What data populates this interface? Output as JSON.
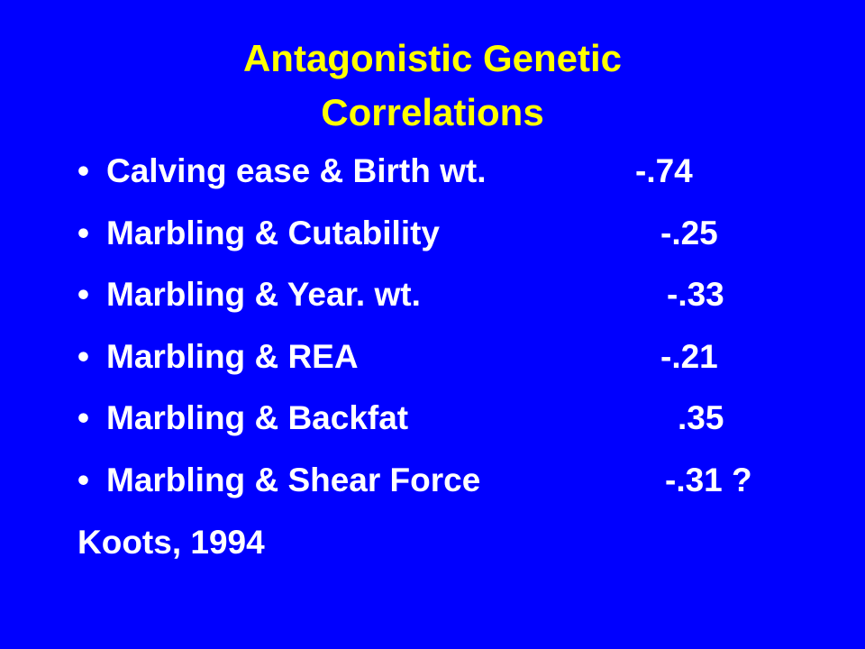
{
  "slide": {
    "title_lines": [
      "Antagonistic Genetic",
      "Correlations"
    ],
    "bullets": [
      {
        "label": "Calving ease & Birth wt.",
        "value": "-.74"
      },
      {
        "label": "Marbling & Cutability",
        "value": "-.25"
      },
      {
        "label": "Marbling & Year. wt.",
        "value": "-.33"
      },
      {
        "label": "Marbling & REA",
        "value": "-.21"
      },
      {
        "label": "Marbling & Backfat",
        "value": ".35"
      },
      {
        "label": "Marbling & Shear Force",
        "value": "-.31 ?"
      }
    ],
    "citation": "Koots, 1994"
  }
}
